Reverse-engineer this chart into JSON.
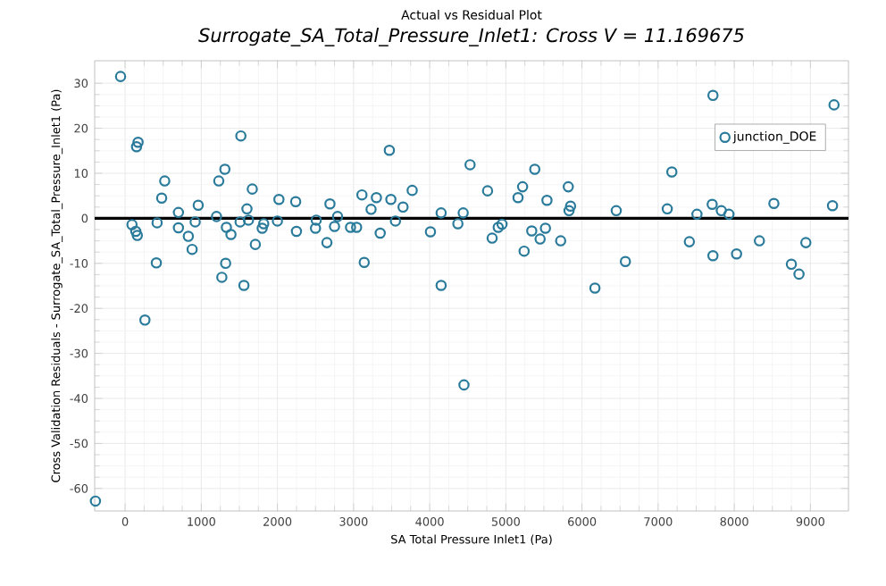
{
  "chart_data": {
    "type": "scatter",
    "title": "Actual vs Residual Plot",
    "subtitle": "Surrogate_SA_Total_Pressure_Inlet1:  Cross V = 11.169675",
    "xlabel": "SA Total Pressure Inlet1 (Pa)",
    "ylabel": "Cross Validation Residuals - Surrogate_SA_Total_Pressure_Inlet1 (Pa)",
    "xlim": [
      -400,
      9500
    ],
    "ylim": [
      -65,
      35
    ],
    "xticks": [
      0,
      1000,
      2000,
      3000,
      4000,
      5000,
      6000,
      7000,
      8000,
      9000
    ],
    "yticks": [
      -60,
      -50,
      -40,
      -30,
      -20,
      -10,
      0,
      10,
      20,
      30
    ],
    "grid": true,
    "legend": "top right",
    "marker": "circle",
    "ref_lines": [
      {
        "axis": "y",
        "value": 0,
        "color": "#000000"
      }
    ],
    "series": [
      {
        "name": "junction_DOE",
        "color": "#2a7b9b",
        "x": [
          -60,
          170,
          150,
          90,
          140,
          160,
          260,
          420,
          410,
          480,
          520,
          700,
          700,
          830,
          880,
          920,
          960,
          1200,
          1230,
          1310,
          1330,
          1320,
          1270,
          1390,
          1520,
          1560,
          1510,
          1600,
          1620,
          1670,
          1710,
          1800,
          1820,
          2000,
          2020,
          2240,
          2250,
          2510,
          2500,
          2650,
          2690,
          2790,
          2750,
          2960,
          3040,
          3110,
          3140,
          3230,
          3300,
          3350,
          3470,
          3490,
          3550,
          3650,
          3770,
          4010,
          4150,
          4150,
          4370,
          4440,
          4530,
          4760,
          4820,
          4900,
          4450,
          -390,
          4950,
          5160,
          5220,
          5380,
          5240,
          5340,
          5520,
          5450,
          5540,
          5720,
          5820,
          5850,
          5830,
          6170,
          6450,
          6570,
          7120,
          7180,
          7410,
          7510,
          7720,
          7710,
          7720,
          7830,
          7930,
          8030,
          8330,
          8520,
          8750,
          8850,
          8940,
          9310,
          9290
        ],
        "values": [
          31.5,
          16.9,
          15.9,
          -1.4,
          -2.9,
          -3.8,
          -22.6,
          -1.0,
          -9.9,
          4.5,
          8.3,
          1.3,
          -2.1,
          -4.0,
          -6.9,
          -0.8,
          2.9,
          0.4,
          8.3,
          10.9,
          -2.0,
          -10.0,
          -13.1,
          -3.6,
          18.3,
          -14.9,
          -0.8,
          2.1,
          -0.4,
          6.5,
          -5.8,
          -2.2,
          -1.2,
          -0.6,
          4.2,
          3.7,
          -2.9,
          -0.4,
          -2.2,
          -5.4,
          3.2,
          0.4,
          -1.8,
          -2.0,
          -2.0,
          5.2,
          -9.8,
          2.0,
          4.6,
          -3.3,
          15.1,
          4.2,
          -0.6,
          2.5,
          6.2,
          -3.0,
          1.2,
          -14.9,
          -1.2,
          1.2,
          11.9,
          6.1,
          -4.4,
          -2.0,
          -37.0,
          -62.8,
          -1.3,
          4.6,
          7.0,
          10.9,
          -7.3,
          -2.8,
          -2.2,
          -4.6,
          4.0,
          -5.0,
          7.0,
          2.7,
          1.7,
          -15.5,
          1.7,
          -9.6,
          2.1,
          10.3,
          -5.2,
          0.9,
          27.3,
          3.1,
          -8.3,
          1.7,
          0.9,
          -7.9,
          -5.0,
          3.3,
          -10.2,
          -12.4,
          -5.4,
          25.2,
          2.8
        ]
      }
    ]
  }
}
